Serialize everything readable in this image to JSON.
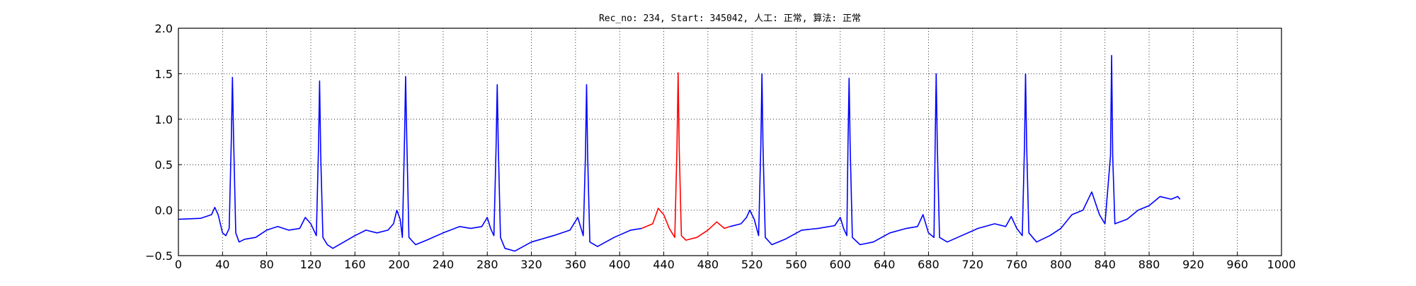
{
  "chart_data": {
    "type": "line",
    "title": "Rec_no: 234, Start: 345042, 人工: 正常, 算法: 正常",
    "xlabel": "",
    "ylabel": "",
    "xlim": [
      0,
      1000
    ],
    "ylim": [
      -0.5,
      2.0
    ],
    "grid": true,
    "y_ticks": [
      -0.5,
      0.0,
      0.5,
      1.0,
      1.5,
      2.0
    ],
    "y_tick_labels": [
      "−0.5",
      "0.0",
      "0.5",
      "1.0",
      "1.5",
      "2.0"
    ],
    "x_ticks": [
      0,
      40,
      80,
      120,
      160,
      200,
      240,
      280,
      320,
      360,
      400,
      440,
      480,
      520,
      560,
      600,
      640,
      680,
      720,
      760,
      800,
      840,
      880,
      920,
      960,
      1000,
      1040,
      1080,
      1120,
      1160,
      1200,
      1240,
      1280,
      1320,
      1360,
      1400,
      1440,
      1480,
      1520,
      1560,
      1600,
      1640,
      1680,
      1720,
      1760,
      1800,
      1840,
      1880,
      1920,
      1960,
      2000,
      2040,
      2080,
      2120,
      2160,
      2200,
      2240,
      2280,
      2320,
      2360,
      2400,
      2440,
      2480,
      2520,
      2560,
      2600
    ],
    "series": [
      {
        "color": "#0000ff",
        "segments": [
          [
            [
              0,
              -0.1
            ],
            [
              20,
              -0.09
            ],
            [
              30,
              -0.05
            ],
            [
              33,
              0.03
            ],
            [
              36,
              -0.05
            ],
            [
              40,
              -0.25
            ],
            [
              43,
              -0.28
            ],
            [
              46,
              -0.2
            ],
            [
              48,
              0.8
            ],
            [
              49,
              1.46
            ],
            [
              50,
              0.8
            ],
            [
              52,
              -0.25
            ],
            [
              55,
              -0.35
            ],
            [
              60,
              -0.32
            ],
            [
              70,
              -0.3
            ],
            [
              80,
              -0.22
            ],
            [
              90,
              -0.18
            ],
            [
              100,
              -0.22
            ],
            [
              110,
              -0.2
            ],
            [
              115,
              -0.08
            ],
            [
              120,
              -0.15
            ],
            [
              125,
              -0.28
            ],
            [
              127,
              0.7
            ],
            [
              128,
              1.42
            ],
            [
              129,
              0.6
            ],
            [
              131,
              -0.3
            ],
            [
              135,
              -0.38
            ],
            [
              140,
              -0.42
            ],
            [
              150,
              -0.35
            ],
            [
              160,
              -0.28
            ],
            [
              170,
              -0.22
            ],
            [
              180,
              -0.25
            ],
            [
              190,
              -0.22
            ],
            [
              195,
              -0.15
            ],
            [
              198,
              0.0
            ],
            [
              201,
              -0.1
            ],
            [
              203,
              -0.3
            ],
            [
              205,
              0.8
            ],
            [
              206,
              1.47
            ],
            [
              207,
              0.8
            ],
            [
              209,
              -0.3
            ],
            [
              215,
              -0.38
            ],
            [
              225,
              -0.33
            ],
            [
              240,
              -0.25
            ],
            [
              255,
              -0.18
            ],
            [
              265,
              -0.2
            ],
            [
              275,
              -0.18
            ],
            [
              280,
              -0.08
            ],
            [
              283,
              -0.2
            ],
            [
              286,
              -0.28
            ],
            [
              288,
              0.7
            ],
            [
              289,
              1.38
            ],
            [
              290,
              0.7
            ],
            [
              292,
              -0.3
            ],
            [
              296,
              -0.42
            ],
            [
              305,
              -0.45
            ],
            [
              320,
              -0.35
            ],
            [
              340,
              -0.28
            ],
            [
              355,
              -0.22
            ],
            [
              362,
              -0.08
            ],
            [
              367,
              -0.28
            ],
            [
              369,
              0.6
            ],
            [
              370,
              1.38
            ],
            [
              371,
              0.6
            ],
            [
              373,
              -0.35
            ],
            [
              380,
              -0.4
            ],
            [
              395,
              -0.3
            ],
            [
              410,
              -0.22
            ],
            [
              420,
              -0.2
            ]
          ]
        ]
      },
      {
        "color": "#ff0000",
        "segments": [
          [
            [
              420,
              -0.2
            ],
            [
              430,
              -0.15
            ],
            [
              435,
              0.02
            ],
            [
              440,
              -0.05
            ],
            [
              445,
              -0.2
            ],
            [
              450,
              -0.3
            ],
            [
              452,
              0.7
            ],
            [
              453,
              1.51
            ],
            [
              454,
              0.7
            ],
            [
              456,
              -0.28
            ],
            [
              460,
              -0.33
            ],
            [
              470,
              -0.3
            ],
            [
              480,
              -0.22
            ],
            [
              488,
              -0.13
            ],
            [
              495,
              -0.2
            ],
            [
              500,
              -0.18
            ]
          ]
        ]
      },
      {
        "color": "#0000ff",
        "segments": [
          [
            [
              500,
              -0.18
            ],
            [
              510,
              -0.15
            ],
            [
              515,
              -0.08
            ],
            [
              518,
              0.0
            ],
            [
              522,
              -0.1
            ],
            [
              526,
              -0.28
            ],
            [
              528,
              0.7
            ],
            [
              529,
              1.5
            ],
            [
              530,
              0.7
            ],
            [
              532,
              -0.3
            ],
            [
              538,
              -0.38
            ],
            [
              550,
              -0.32
            ],
            [
              565,
              -0.22
            ],
            [
              580,
              -0.2
            ],
            [
              595,
              -0.17
            ],
            [
              600,
              -0.08
            ],
            [
              603,
              -0.2
            ],
            [
              606,
              -0.28
            ],
            [
              607,
              0.7
            ],
            [
              608,
              1.45
            ],
            [
              609,
              0.7
            ],
            [
              611,
              -0.3
            ],
            [
              618,
              -0.38
            ],
            [
              630,
              -0.35
            ],
            [
              645,
              -0.25
            ],
            [
              660,
              -0.2
            ],
            [
              670,
              -0.18
            ],
            [
              675,
              -0.05
            ],
            [
              680,
              -0.25
            ],
            [
              685,
              -0.3
            ],
            [
              686,
              0.7
            ],
            [
              687,
              1.5
            ],
            [
              688,
              0.7
            ],
            [
              690,
              -0.3
            ],
            [
              697,
              -0.35
            ],
            [
              710,
              -0.28
            ],
            [
              725,
              -0.2
            ],
            [
              740,
              -0.15
            ],
            [
              750,
              -0.18
            ],
            [
              755,
              -0.07
            ],
            [
              760,
              -0.2
            ],
            [
              765,
              -0.28
            ],
            [
              767,
              0.7
            ],
            [
              768,
              1.5
            ],
            [
              769,
              0.7
            ],
            [
              771,
              -0.25
            ],
            [
              778,
              -0.35
            ],
            [
              790,
              -0.28
            ],
            [
              800,
              -0.2
            ],
            [
              810,
              -0.05
            ],
            [
              820,
              0.0
            ],
            [
              828,
              0.2
            ],
            [
              835,
              -0.05
            ],
            [
              840,
              -0.15
            ],
            [
              845,
              0.6
            ],
            [
              846,
              1.7
            ],
            [
              847,
              0.6
            ],
            [
              849,
              -0.15
            ],
            [
              860,
              -0.1
            ],
            [
              870,
              0.0
            ],
            [
              880,
              0.05
            ],
            [
              890,
              0.15
            ],
            [
              900,
              0.12
            ],
            [
              906,
              0.15
            ],
            [
              908,
              0.12
            ]
          ]
        ]
      }
    ]
  }
}
